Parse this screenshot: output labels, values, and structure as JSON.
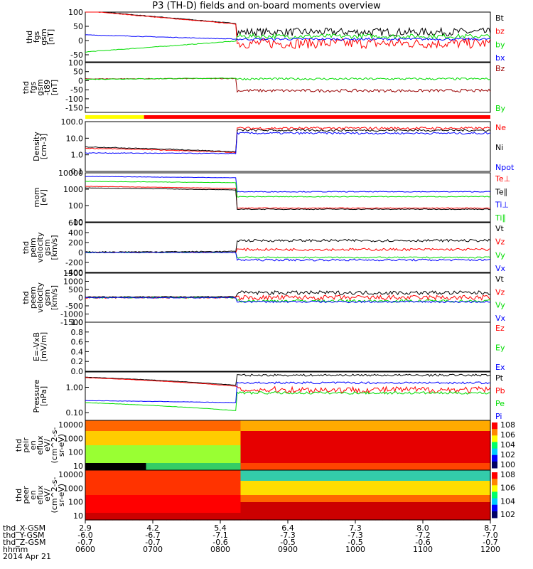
{
  "title": "P3 (TH-D) fields and on-board moments overview",
  "colors": {
    "black": "#000000",
    "red": "#ff0000",
    "green": "#00dd00",
    "blue": "#0000ff",
    "darkred": "#990000",
    "yellow": "#ffff00",
    "lime": "#00ff00"
  },
  "chart_data": [
    {
      "type": "line",
      "ylabel": [
        "thd",
        "fgs",
        "gsm",
        "[nT]"
      ],
      "yticks": [
        "100",
        "50",
        "0",
        "-50"
      ],
      "ylim": [
        -75,
        100
      ],
      "series": [
        {
          "name": "Bt",
          "color": "black"
        },
        {
          "name": "bz",
          "color": "red"
        },
        {
          "name": "by",
          "color": "green"
        },
        {
          "name": "bx",
          "color": "blue"
        }
      ]
    },
    {
      "type": "line",
      "ylabel": [
        "thd",
        "fgs",
        "gsm",
        "-t89",
        "[nT]"
      ],
      "yticks": [
        "100",
        "50",
        "0",
        "-50",
        "-100",
        "-150"
      ],
      "ylim": [
        -175,
        100
      ],
      "series": [
        {
          "name": "Bz",
          "color": "darkred"
        },
        {
          "name": "By",
          "color": "green"
        }
      ]
    },
    {
      "type": "line",
      "ylabel": [
        "Density",
        "[cm-3]"
      ],
      "yticks": [
        "100.0",
        "10.0",
        "1.0",
        "0.1"
      ],
      "ylim": [
        0.1,
        100
      ],
      "log": true,
      "series": [
        {
          "name": "Ne",
          "color": "red"
        },
        {
          "name": "Ni",
          "color": "black"
        },
        {
          "name": "Npot",
          "color": "blue"
        }
      ]
    },
    {
      "type": "line",
      "ylabel": [
        "mom",
        "[eV]"
      ],
      "yticks": [
        "10000",
        "1000",
        "100",
        "10"
      ],
      "ylim": [
        10,
        10000
      ],
      "log": true,
      "series": [
        {
          "name": "Te⊥",
          "color": "red"
        },
        {
          "name": "Te∥",
          "color": "black"
        },
        {
          "name": "Ti⊥",
          "color": "blue"
        },
        {
          "name": "Ti∥",
          "color": "green"
        }
      ]
    },
    {
      "type": "line",
      "ylabel": [
        "thd",
        "peim",
        "velocity",
        "gsm",
        "[km/s]"
      ],
      "yticks": [
        "600",
        "400",
        "200",
        "0",
        "-200",
        "-400"
      ],
      "ylim": [
        -400,
        600
      ],
      "series": [
        {
          "name": "Vt",
          "color": "black"
        },
        {
          "name": "Vz",
          "color": "red"
        },
        {
          "name": "Vy",
          "color": "green"
        },
        {
          "name": "Vx",
          "color": "blue"
        }
      ]
    },
    {
      "type": "line",
      "ylabel": [
        "thd",
        "peem",
        "velocity",
        "gsm",
        "[km/s]"
      ],
      "yticks": [
        "1500",
        "1000",
        "500",
        "0",
        "-500",
        "-1000",
        "-1500"
      ],
      "ylim": [
        -1500,
        1500
      ],
      "series": [
        {
          "name": "Vt",
          "color": "black"
        },
        {
          "name": "Vz",
          "color": "red"
        },
        {
          "name": "Vy",
          "color": "green"
        },
        {
          "name": "Vx",
          "color": "blue"
        }
      ]
    },
    {
      "type": "line",
      "ylabel": [
        "E=-VxB",
        "[mV/m]"
      ],
      "yticks": [
        "1.0",
        "0.8",
        "0.6",
        "0.4",
        "0.2",
        "0.0"
      ],
      "ylim": [
        0,
        1
      ],
      "series": [
        {
          "name": "Ez",
          "color": "red"
        },
        {
          "name": "Ey",
          "color": "green"
        },
        {
          "name": "Ex",
          "color": "blue"
        }
      ]
    },
    {
      "type": "line",
      "ylabel": [
        "Pressure",
        "[nPa]"
      ],
      "yticks": [
        "1.00",
        "0.10"
      ],
      "ylim": [
        0.05,
        4
      ],
      "log": true,
      "series": [
        {
          "name": "Pt",
          "color": "black"
        },
        {
          "name": "Pb",
          "color": "red"
        },
        {
          "name": "Pe",
          "color": "green"
        },
        {
          "name": "Pi",
          "color": "blue"
        }
      ]
    },
    {
      "type": "heatmap",
      "ylabel": [
        "thd",
        "peir",
        "en",
        "eflux",
        "eV/",
        "(cm^2-s-",
        "sr-eV)"
      ],
      "yticks": [
        "10000",
        "1000",
        "100",
        "10"
      ],
      "ylim": [
        10,
        20000
      ],
      "log": true,
      "colorbar": [
        "10^8",
        "10^6",
        "10^4",
        "10^2",
        "10^0"
      ]
    },
    {
      "type": "heatmap",
      "ylabel": [
        "thd",
        "peer",
        "en",
        "eflux",
        "eV/",
        "(cm^2-s-",
        "sr-eV)"
      ],
      "yticks": [
        "10000",
        "1000",
        "100",
        "10"
      ],
      "ylim": [
        10,
        20000
      ],
      "log": true,
      "colorbar": [
        "10^8",
        "10^6",
        "10^4",
        "10^2"
      ]
    }
  ],
  "xaxis": {
    "rows": [
      {
        "label": "thd_X-GSM",
        "values": [
          "2.9",
          "4.2",
          "5.4",
          "6.4",
          "7.3",
          "8.0",
          "8.7"
        ]
      },
      {
        "label": "thd_Y-GSM",
        "values": [
          "-6.0",
          "-6.7",
          "-7.1",
          "-7.3",
          "-7.3",
          "-7.2",
          "-7.0"
        ]
      },
      {
        "label": "thd_Z-GSM",
        "values": [
          "-0.7",
          "-0.7",
          "-0.6",
          "-0.5",
          "-0.5",
          "-0.6",
          "-0.7"
        ]
      },
      {
        "label": "hhmm",
        "values": [
          "0600",
          "0700",
          "0800",
          "0900",
          "1000",
          "1100",
          "1200"
        ]
      }
    ],
    "date": "2014 Apr 21",
    "hours": [
      6,
      7,
      8,
      9,
      10,
      11,
      12
    ]
  }
}
